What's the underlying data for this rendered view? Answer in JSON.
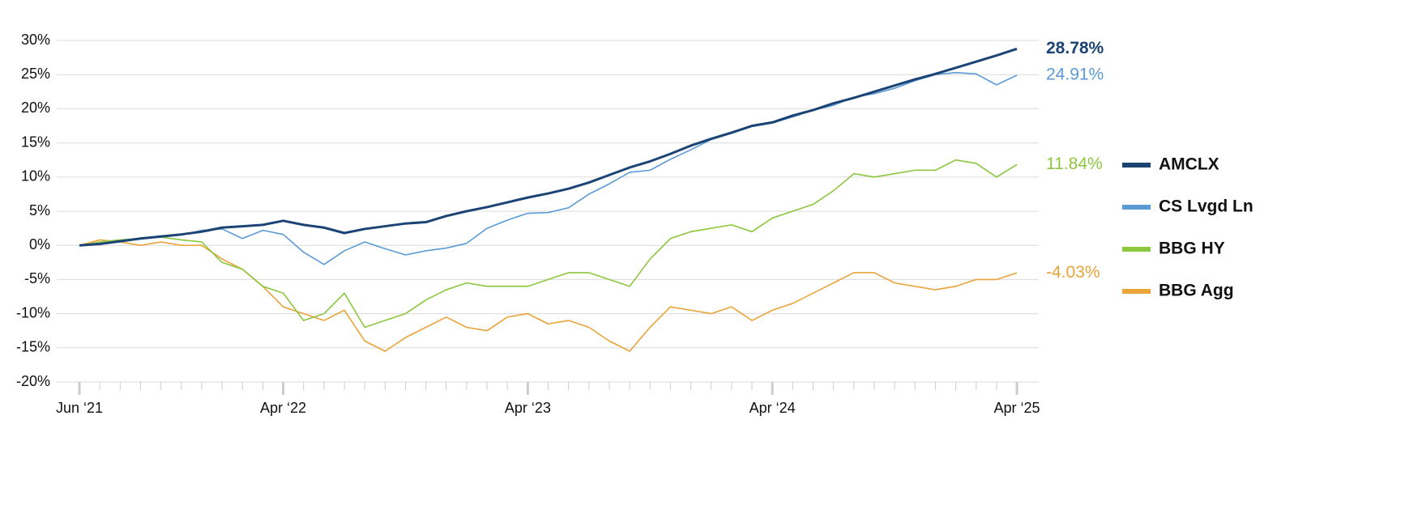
{
  "chart_data": {
    "type": "line",
    "categories": [
      "Jun ‘21",
      null,
      null,
      null,
      null,
      null,
      null,
      null,
      null,
      null,
      "Apr ‘22",
      null,
      null,
      null,
      null,
      null,
      null,
      null,
      null,
      null,
      null,
      null,
      "Apr ‘23",
      null,
      null,
      null,
      null,
      null,
      null,
      null,
      null,
      null,
      null,
      null,
      "Apr ‘24",
      null,
      null,
      null,
      null,
      null,
      null,
      null,
      null,
      null,
      null,
      null,
      "Apr ‘25"
    ],
    "series": [
      {
        "name": "AMCLX",
        "color": "#1b4474",
        "end_label": "28.78%",
        "values": [
          0,
          0.2,
          0.6,
          1.0,
          1.3,
          1.6,
          2.0,
          2.6,
          2.8,
          3.0,
          3.6,
          3.0,
          2.6,
          1.8,
          2.4,
          2.8,
          3.2,
          3.4,
          4.3,
          5.0,
          5.6,
          6.3,
          7.0,
          7.6,
          8.3,
          9.2,
          10.3,
          11.4,
          12.3,
          13.4,
          14.6,
          15.6,
          16.5,
          17.5,
          18.0,
          19.0,
          19.8,
          20.8,
          21.6,
          22.5,
          23.4,
          24.3,
          25.1,
          26.0,
          26.9,
          27.8,
          28.78
        ]
      },
      {
        "name": "CS Lvgd Ln",
        "color": "#5b9bd5",
        "end_label": "24.91%",
        "values": [
          0,
          0.3,
          0.6,
          1.0,
          1.4,
          1.5,
          2.2,
          2.4,
          1.0,
          2.2,
          1.6,
          -1.0,
          -2.8,
          -0.8,
          0.5,
          -0.5,
          -1.4,
          -0.8,
          -0.4,
          0.3,
          2.5,
          3.7,
          4.7,
          4.8,
          5.5,
          7.5,
          9.0,
          10.7,
          11.0,
          12.6,
          14.0,
          15.5,
          16.4,
          17.4,
          17.9,
          18.8,
          19.8,
          20.5,
          21.7,
          22.2,
          23.0,
          24.1,
          25.0,
          25.3,
          25.1,
          23.5,
          24.91
        ]
      },
      {
        "name": "BBG HY",
        "color": "#8dc63f",
        "end_label": "11.84%",
        "values": [
          0,
          0.5,
          0.8,
          1.0,
          1.2,
          0.8,
          0.5,
          -2.5,
          -3.5,
          -6,
          -7,
          -11,
          -10,
          -7,
          -12,
          -11,
          -10,
          -8,
          -6.5,
          -5.5,
          -6,
          -6,
          -6,
          -5,
          -4,
          -4,
          -5,
          -6,
          -2,
          1,
          2,
          2.5,
          3,
          2,
          4,
          5,
          6,
          8,
          10.5,
          10,
          10.5,
          11,
          11,
          12.5,
          12,
          10,
          11.84
        ]
      },
      {
        "name": "BBG Agg",
        "color": "#e9a43a",
        "end_label": "-4.03%",
        "values": [
          0,
          0.8,
          0.5,
          0,
          0.5,
          0,
          0,
          -2,
          -3.5,
          -6,
          -9,
          -10,
          -11,
          -9.5,
          -14,
          -15.5,
          -13.5,
          -12,
          -10.5,
          -12,
          -12.5,
          -10.5,
          -10,
          -11.5,
          -11,
          -12,
          -14,
          -15.5,
          -12,
          -9,
          -9.5,
          -10,
          -9,
          -11,
          -9.5,
          -8.5,
          -7,
          -5.5,
          -4,
          -4,
          -5.5,
          -6,
          -6.5,
          -6,
          -5,
          -5,
          -4.03
        ]
      }
    ],
    "ylim": [
      -20,
      30
    ],
    "yticks": [
      {
        "value": -20,
        "label": "-20%"
      },
      {
        "value": -15,
        "label": "-15%"
      },
      {
        "value": -10,
        "label": "-10%"
      },
      {
        "value": -5,
        "label": "-5%"
      },
      {
        "value": 0,
        "label": "0%"
      },
      {
        "value": 5,
        "label": "5%"
      },
      {
        "value": 10,
        "label": "10%"
      },
      {
        "value": 15,
        "label": "15%"
      },
      {
        "value": 20,
        "label": "20%"
      },
      {
        "value": 25,
        "label": "25%"
      },
      {
        "value": 30,
        "label": "30%"
      }
    ],
    "grid": true
  }
}
